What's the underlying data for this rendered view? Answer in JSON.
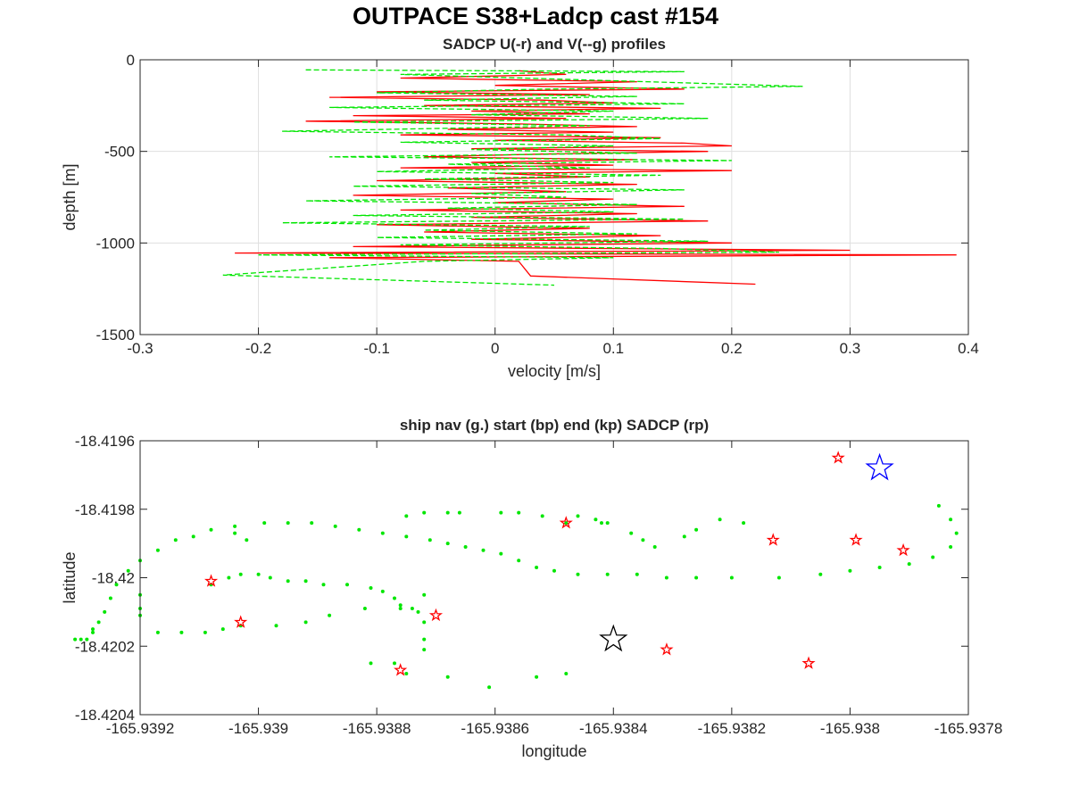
{
  "figure": {
    "title": "OUTPACE S38+Ladcp cast #154"
  },
  "chart_data": [
    {
      "type": "line",
      "title": "SADCP U(-r) and V(--g) profiles",
      "xlabel": "velocity [m/s]",
      "ylabel": "depth [m]",
      "xlim": [
        -0.3,
        0.4
      ],
      "ylim": [
        -1500,
        0
      ],
      "xticks": [
        -0.3,
        -0.2,
        -0.1,
        0,
        0.1,
        0.2,
        0.3,
        0.4
      ],
      "yticks": [
        0,
        -500,
        -1000,
        -1500
      ],
      "xtick_labels": [
        "-0.3",
        "-0.2",
        "-0.1",
        "0",
        "0.1",
        "0.2",
        "0.3",
        "0.4"
      ],
      "ytick_labels": [
        "0",
        "-500",
        "-1000",
        "-1500"
      ],
      "grid": true,
      "series": [
        {
          "name": "U",
          "color": "#ff0000",
          "dash": "solid",
          "points": [
            [
              0.02,
              -60
            ],
            [
              0.06,
              -80
            ],
            [
              -0.08,
              -100
            ],
            [
              0.12,
              -120
            ],
            [
              0.0,
              -140
            ],
            [
              0.16,
              -160
            ],
            [
              -0.1,
              -175
            ],
            [
              0.08,
              -190
            ],
            [
              -0.14,
              -205
            ],
            [
              0.04,
              -220
            ],
            [
              0.1,
              -235
            ],
            [
              -0.06,
              -250
            ],
            [
              0.14,
              -265
            ],
            [
              -0.02,
              -280
            ],
            [
              0.08,
              -295
            ],
            [
              -0.12,
              -305
            ],
            [
              0.06,
              -320
            ],
            [
              -0.16,
              -335
            ],
            [
              0.02,
              -350
            ],
            [
              0.12,
              -365
            ],
            [
              -0.04,
              -380
            ],
            [
              0.1,
              -395
            ],
            [
              -0.08,
              -410
            ],
            [
              0.14,
              -425
            ],
            [
              0.0,
              -440
            ],
            [
              0.16,
              -455
            ],
            [
              0.2,
              -470
            ],
            [
              -0.02,
              -485
            ],
            [
              0.18,
              -500
            ],
            [
              0.04,
              -515
            ],
            [
              -0.06,
              -530
            ],
            [
              0.12,
              -545
            ],
            [
              -0.02,
              -560
            ],
            [
              0.1,
              -575
            ],
            [
              -0.08,
              -590
            ],
            [
              0.2,
              -605
            ],
            [
              0.0,
              -620
            ],
            [
              0.08,
              -640
            ],
            [
              -0.1,
              -660
            ],
            [
              0.12,
              -680
            ],
            [
              -0.04,
              -700
            ],
            [
              0.06,
              -720
            ],
            [
              -0.12,
              -740
            ],
            [
              0.1,
              -760
            ],
            [
              0.0,
              -780
            ],
            [
              0.16,
              -800
            ],
            [
              -0.08,
              -820
            ],
            [
              0.12,
              -840
            ],
            [
              -0.02,
              -860
            ],
            [
              0.18,
              -880
            ],
            [
              -0.1,
              -900
            ],
            [
              0.08,
              -920
            ],
            [
              -0.06,
              -940
            ],
            [
              0.14,
              -960
            ],
            [
              -0.02,
              -980
            ],
            [
              0.2,
              -1000
            ],
            [
              -0.12,
              -1020
            ],
            [
              0.3,
              -1040
            ],
            [
              -0.22,
              -1055
            ],
            [
              0.39,
              -1065
            ],
            [
              -0.14,
              -1080
            ],
            [
              0.02,
              -1100
            ],
            [
              0.03,
              -1180
            ],
            [
              0.22,
              -1225
            ]
          ]
        },
        {
          "name": "V",
          "color": "#00e600",
          "dash": "dashed",
          "points": [
            [
              -0.16,
              -55
            ],
            [
              0.16,
              -65
            ],
            [
              -0.08,
              -80
            ],
            [
              0.26,
              -145
            ],
            [
              0.04,
              -160
            ],
            [
              -0.1,
              -180
            ],
            [
              0.12,
              -200
            ],
            [
              -0.06,
              -220
            ],
            [
              0.16,
              -240
            ],
            [
              -0.14,
              -260
            ],
            [
              0.1,
              -280
            ],
            [
              -0.02,
              -300
            ],
            [
              0.18,
              -320
            ],
            [
              -0.12,
              -340
            ],
            [
              0.08,
              -360
            ],
            [
              -0.18,
              -390
            ],
            [
              0.06,
              -410
            ],
            [
              0.14,
              -430
            ],
            [
              -0.08,
              -450
            ],
            [
              0.1,
              -470
            ],
            [
              -0.02,
              -490
            ],
            [
              0.12,
              -510
            ],
            [
              -0.14,
              -530
            ],
            [
              0.2,
              -550
            ],
            [
              -0.04,
              -570
            ],
            [
              0.08,
              -590
            ],
            [
              -0.1,
              -610
            ],
            [
              0.14,
              -630
            ],
            [
              -0.06,
              -650
            ],
            [
              0.1,
              -670
            ],
            [
              -0.12,
              -690
            ],
            [
              0.16,
              -710
            ],
            [
              -0.02,
              -730
            ],
            [
              0.06,
              -750
            ],
            [
              -0.16,
              -770
            ],
            [
              0.12,
              -790
            ],
            [
              -0.04,
              -810
            ],
            [
              0.1,
              -830
            ],
            [
              -0.12,
              -850
            ],
            [
              0.16,
              -870
            ],
            [
              -0.18,
              -890
            ],
            [
              0.08,
              -910
            ],
            [
              -0.06,
              -930
            ],
            [
              0.12,
              -950
            ],
            [
              -0.1,
              -970
            ],
            [
              0.18,
              -990
            ],
            [
              -0.08,
              -1010
            ],
            [
              0.14,
              -1030
            ],
            [
              0.24,
              -1050
            ],
            [
              -0.2,
              -1065
            ],
            [
              0.1,
              -1080
            ],
            [
              -0.06,
              -1100
            ],
            [
              -0.23,
              -1175
            ],
            [
              0.05,
              -1230
            ]
          ]
        }
      ]
    },
    {
      "type": "scatter",
      "title": "ship nav (g.) start (bp) end (kp) SADCP (rp)",
      "xlabel": "longitude",
      "ylabel": "latitude",
      "xlim": [
        -165.9392,
        -165.9378
      ],
      "ylim": [
        -18.4204,
        -18.4196
      ],
      "xticks": [
        -165.9392,
        -165.939,
        -165.9388,
        -165.9386,
        -165.9384,
        -165.9382,
        -165.938,
        -165.9378
      ],
      "yticks": [
        -18.4196,
        -18.4198,
        -18.42,
        -18.4202,
        -18.4204
      ],
      "xtick_labels": [
        "-165.9392",
        "-165.939",
        "-165.9388",
        "-165.9386",
        "-165.9384",
        "-165.9382",
        "-165.938",
        "-165.9378"
      ],
      "ytick_labels": [
        "-18.4196",
        "-18.4198",
        "-18.42",
        "-18.4202",
        "-18.4204"
      ],
      "grid": false,
      "ship_nav": [
        [
          -165.93785,
          -18.41979
        ],
        [
          -165.93783,
          -18.41983
        ],
        [
          -165.93782,
          -18.41987
        ],
        [
          -165.93783,
          -18.41991
        ],
        [
          -165.93786,
          -18.41994
        ],
        [
          -165.9379,
          -18.41996
        ],
        [
          -165.93795,
          -18.41997
        ],
        [
          -165.938,
          -18.41998
        ],
        [
          -165.93805,
          -18.41999
        ],
        [
          -165.93812,
          -18.42
        ],
        [
          -165.9382,
          -18.42
        ],
        [
          -165.93826,
          -18.42
        ],
        [
          -165.93831,
          -18.42
        ],
        [
          -165.93836,
          -18.41999
        ],
        [
          -165.93841,
          -18.41999
        ],
        [
          -165.93846,
          -18.41999
        ],
        [
          -165.9385,
          -18.41998
        ],
        [
          -165.93853,
          -18.41997
        ],
        [
          -165.93856,
          -18.41995
        ],
        [
          -165.93859,
          -18.41993
        ],
        [
          -165.93862,
          -18.41992
        ],
        [
          -165.93865,
          -18.41991
        ],
        [
          -165.93868,
          -18.4199
        ],
        [
          -165.93871,
          -18.41989
        ],
        [
          -165.93875,
          -18.41988
        ],
        [
          -165.93879,
          -18.41987
        ],
        [
          -165.93883,
          -18.41986
        ],
        [
          -165.93887,
          -18.41985
        ],
        [
          -165.93891,
          -18.41984
        ],
        [
          -165.93895,
          -18.41984
        ],
        [
          -165.93899,
          -18.41984
        ],
        [
          -165.93904,
          -18.41985
        ],
        [
          -165.93908,
          -18.41986
        ],
        [
          -165.93911,
          -18.41988
        ],
        [
          -165.93914,
          -18.41989
        ],
        [
          -165.93917,
          -18.41992
        ],
        [
          -165.9392,
          -18.41995
        ],
        [
          -165.93922,
          -18.41998
        ],
        [
          -165.93924,
          -18.42002
        ],
        [
          -165.93925,
          -18.42006
        ],
        [
          -165.93926,
          -18.4201
        ],
        [
          -165.93927,
          -18.42013
        ],
        [
          -165.93928,
          -18.42015
        ],
        [
          -165.93928,
          -18.42016
        ],
        [
          -165.93929,
          -18.42018
        ],
        [
          -165.9393,
          -18.42018
        ],
        [
          -165.93931,
          -18.42018
        ],
        [
          -165.9392,
          -18.42005
        ],
        [
          -165.9392,
          -18.42009
        ],
        [
          -165.9392,
          -18.42011
        ],
        [
          -165.93917,
          -18.42016
        ],
        [
          -165.93913,
          -18.42016
        ],
        [
          -165.93909,
          -18.42016
        ],
        [
          -165.93906,
          -18.42015
        ],
        [
          -165.93903,
          -18.42014
        ],
        [
          -165.93897,
          -18.42014
        ],
        [
          -165.93892,
          -18.42013
        ],
        [
          -165.93888,
          -18.42011
        ],
        [
          -165.93882,
          -18.42009
        ],
        [
          -165.93876,
          -18.42009
        ],
        [
          -165.93872,
          -18.42013
        ],
        [
          -165.93872,
          -18.42018
        ],
        [
          -165.93872,
          -18.42021
        ],
        [
          -165.93872,
          -18.42005
        ],
        [
          -165.93873,
          -18.4201
        ],
        [
          -165.93874,
          -18.42009
        ],
        [
          -165.93876,
          -18.42008
        ],
        [
          -165.93877,
          -18.42006
        ],
        [
          -165.93879,
          -18.42004
        ],
        [
          -165.93881,
          -18.42003
        ],
        [
          -165.93885,
          -18.42002
        ],
        [
          -165.93889,
          -18.42002
        ],
        [
          -165.93892,
          -18.42001
        ],
        [
          -165.93895,
          -18.42001
        ],
        [
          -165.93898,
          -18.42
        ],
        [
          -165.939,
          -18.41999
        ],
        [
          -165.93903,
          -18.41999
        ],
        [
          -165.93905,
          -18.42
        ],
        [
          -165.93908,
          -18.42002
        ],
        [
          -165.93877,
          -18.42025
        ],
        [
          -165.93881,
          -18.42025
        ],
        [
          -165.93875,
          -18.42028
        ],
        [
          -165.93868,
          -18.42029
        ],
        [
          -165.93861,
          -18.42032
        ],
        [
          -165.93853,
          -18.42029
        ],
        [
          -165.93848,
          -18.42028
        ],
        [
          -165.93902,
          -18.41989
        ],
        [
          -165.93904,
          -18.41987
        ],
        [
          -165.93875,
          -18.41982
        ],
        [
          -165.93872,
          -18.41981
        ],
        [
          -165.93868,
          -18.41981
        ],
        [
          -165.93866,
          -18.41981
        ],
        [
          -165.93859,
          -18.41981
        ],
        [
          -165.93856,
          -18.41981
        ],
        [
          -165.93852,
          -18.41982
        ],
        [
          -165.93848,
          -18.41984
        ],
        [
          -165.93846,
          -18.41982
        ],
        [
          -165.93843,
          -18.41983
        ],
        [
          -165.93842,
          -18.41984
        ],
        [
          -165.93841,
          -18.41984
        ],
        [
          -165.93837,
          -18.41987
        ],
        [
          -165.93835,
          -18.41989
        ],
        [
          -165.93833,
          -18.41991
        ],
        [
          -165.93828,
          -18.41988
        ],
        [
          -165.93826,
          -18.41986
        ],
        [
          -165.93822,
          -18.41983
        ],
        [
          -165.93818,
          -18.41984
        ]
      ],
      "sadcp": [
        [
          -165.93802,
          -18.41965
        ],
        [
          -165.93908,
          -18.42001
        ],
        [
          -165.93903,
          -18.42013
        ],
        [
          -165.93876,
          -18.42027
        ],
        [
          -165.9387,
          -18.42011
        ],
        [
          -165.93848,
          -18.41984
        ],
        [
          -165.93831,
          -18.42021
        ],
        [
          -165.93813,
          -18.41989
        ],
        [
          -165.93807,
          -18.42025
        ],
        [
          -165.93799,
          -18.41989
        ],
        [
          -165.93791,
          -18.41992
        ]
      ],
      "start": [
        -165.93795,
        -18.41968
      ],
      "end": [
        -165.9384,
        -18.42018
      ]
    }
  ]
}
